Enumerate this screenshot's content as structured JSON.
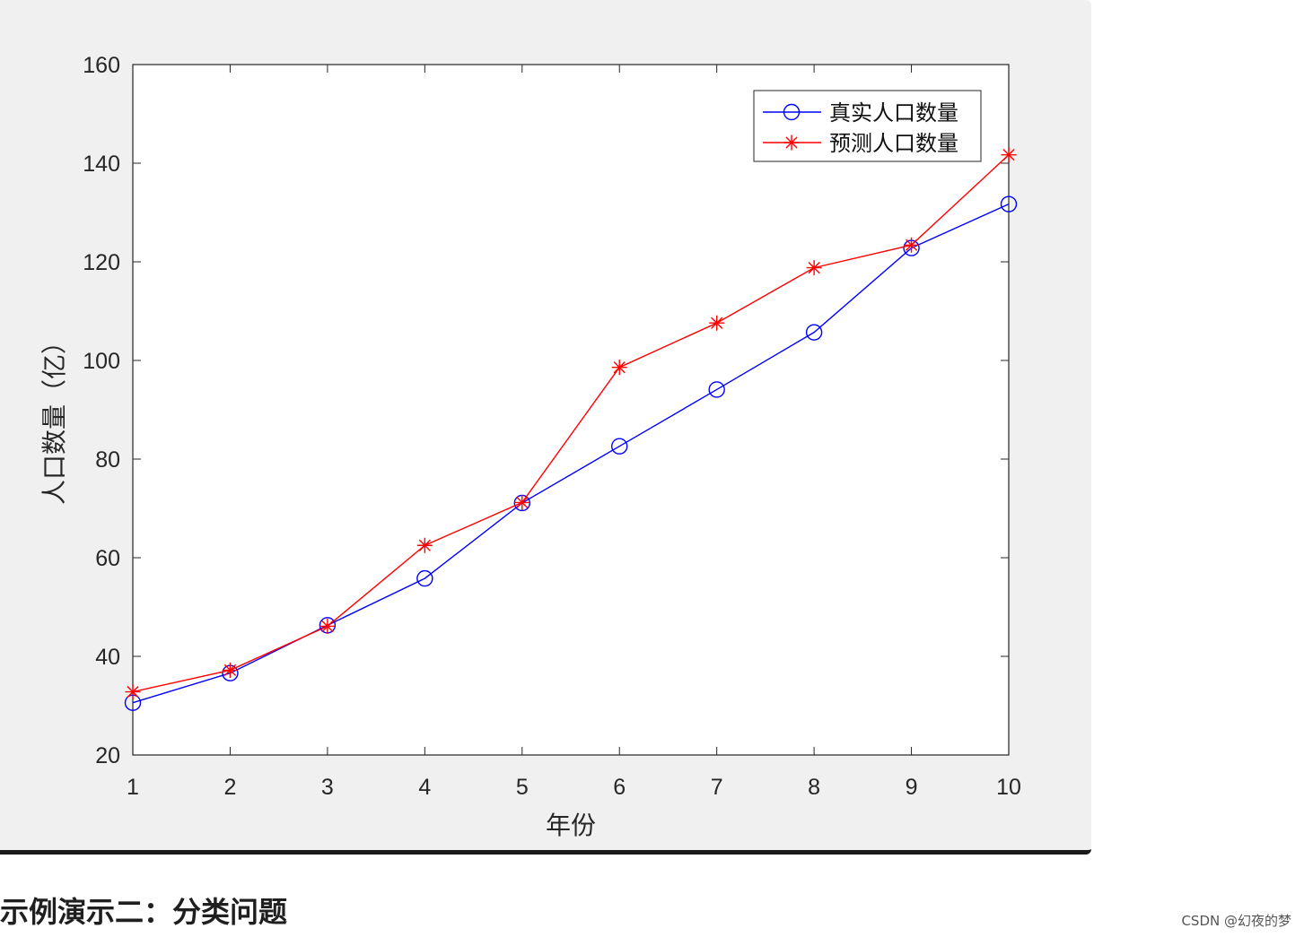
{
  "chart_data": {
    "type": "line",
    "title": "",
    "xlabel": "年份",
    "ylabel": "人口数量（亿）",
    "xlim": [
      1,
      10
    ],
    "ylim": [
      20,
      160
    ],
    "xticks": [
      1,
      2,
      3,
      4,
      5,
      6,
      7,
      8,
      9,
      10
    ],
    "yticks": [
      20,
      40,
      60,
      80,
      100,
      120,
      140,
      160
    ],
    "grid": false,
    "legend_position": "top-right",
    "x": [
      1,
      2,
      3,
      4,
      5,
      6,
      7,
      8,
      9,
      10
    ],
    "series": [
      {
        "name": "真实人口数量",
        "color": "#0000ff",
        "marker": "circle",
        "values": [
          30.6,
          36.6,
          46.3,
          55.8,
          71.1,
          82.6,
          94.1,
          105.7,
          122.8,
          131.7
        ]
      },
      {
        "name": "预测人口数量",
        "color": "#ff0000",
        "marker": "asterisk",
        "values": [
          32.8,
          37.2,
          46.1,
          62.5,
          71.2,
          98.6,
          107.6,
          118.8,
          123.4,
          141.7
        ]
      }
    ]
  },
  "section_heading": "示例演示二：分类问题",
  "watermark": "CSDN @幻夜的梦"
}
